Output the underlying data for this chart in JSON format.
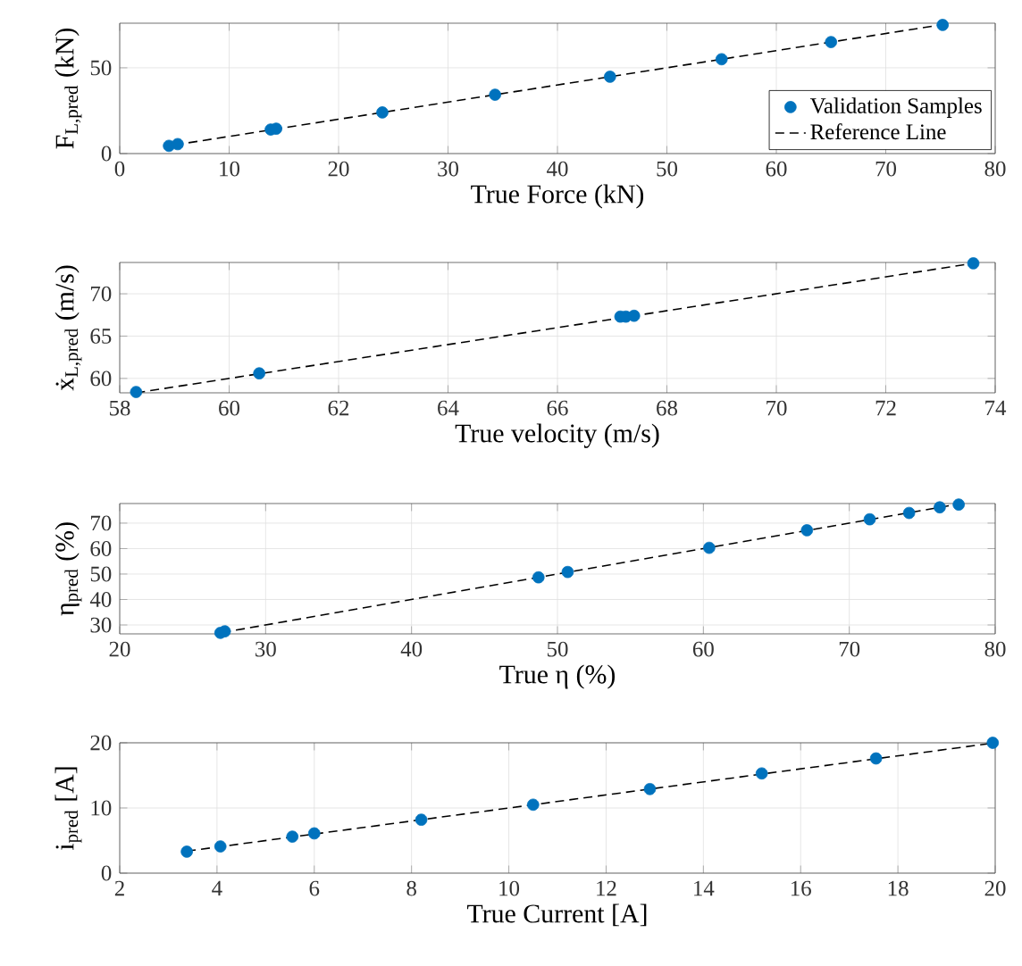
{
  "chart_data": [
    {
      "type": "scatter",
      "xlabel": "True Force (kN)",
      "ylabel": "F$_{L,pred}$ (kN)",
      "xlim": [
        0,
        80
      ],
      "ylim": [
        0,
        76
      ],
      "xticks": [
        0,
        10,
        20,
        30,
        40,
        50,
        60,
        70,
        80
      ],
      "yticks": [
        0,
        50
      ],
      "grid": true,
      "marker": "circle",
      "legend": "bottom right",
      "series": [
        {
          "name": "Validation Samples",
          "color": "#0072bd",
          "x": [
            4.5,
            5.3,
            13.8,
            14.3,
            24,
            34.3,
            44.8,
            55,
            65,
            75.2
          ],
          "values": [
            4.5,
            5.5,
            14,
            14.5,
            24,
            34.3,
            44.8,
            55,
            65,
            75
          ]
        },
        {
          "type": "line",
          "name": "Reference Line",
          "color": "#000000",
          "marker": "none",
          "line_style": "dashed",
          "x": [
            5,
            75.2
          ],
          "values": [
            5,
            75.2
          ]
        }
      ]
    },
    {
      "type": "scatter",
      "xlabel": "True velocity (m/s)",
      "ylabel": "ẋ$_{L,pred}$ (m/s)",
      "xlim": [
        58,
        74
      ],
      "ylim": [
        58.3,
        73.7
      ],
      "xticks": [
        58,
        60,
        62,
        64,
        66,
        68,
        70,
        72,
        74
      ],
      "yticks": [
        60,
        65,
        70
      ],
      "grid": true,
      "marker": "circle",
      "series": [
        {
          "color": "#0072bd",
          "x": [
            58.3,
            60.55,
            67.15,
            67.25,
            67.4,
            73.6
          ],
          "values": [
            58.4,
            60.6,
            67.3,
            67.3,
            67.4,
            73.6
          ]
        },
        {
          "type": "line",
          "color": "#000000",
          "marker": "none",
          "line_style": "dashed",
          "x": [
            58.3,
            73.6
          ],
          "values": [
            58.3,
            73.6
          ]
        }
      ]
    },
    {
      "type": "scatter",
      "xlabel": "True η (%)",
      "ylabel": "η$_{pred}$ (%)",
      "xlim": [
        20,
        80
      ],
      "ylim": [
        26.5,
        77.7
      ],
      "xticks": [
        20,
        30,
        40,
        50,
        60,
        70,
        80
      ],
      "yticks": [
        30,
        40,
        50,
        60,
        70
      ],
      "grid": true,
      "marker": "circle",
      "series": [
        {
          "color": "#0072bd",
          "x": [
            26.9,
            27.2,
            48.7,
            50.7,
            60.4,
            67.1,
            71.4,
            74.1,
            76.2,
            77.5
          ],
          "values": [
            26.9,
            27.5,
            48.7,
            50.8,
            60.3,
            67.2,
            71.5,
            74,
            76.2,
            77.3
          ]
        },
        {
          "type": "line",
          "color": "#000000",
          "marker": "none",
          "line_style": "dashed",
          "x": [
            27,
            77.5
          ],
          "values": [
            27,
            77.5
          ]
        }
      ]
    },
    {
      "type": "scatter",
      "xlabel": "True Current [A]",
      "ylabel": "i$_{pred}$ [A]",
      "xlim": [
        2,
        20
      ],
      "ylim": [
        0,
        20
      ],
      "xticks": [
        2,
        4,
        6,
        8,
        10,
        12,
        14,
        16,
        18,
        20
      ],
      "yticks": [
        0,
        10,
        20
      ],
      "grid": true,
      "marker": "circle",
      "series": [
        {
          "color": "#0072bd",
          "x": [
            3.38,
            4.07,
            5.55,
            6.0,
            8.2,
            10.5,
            12.9,
            15.2,
            17.55,
            19.95
          ],
          "values": [
            3.3,
            4.1,
            5.6,
            6.1,
            8.2,
            10.5,
            12.9,
            15.3,
            17.6,
            20
          ]
        },
        {
          "type": "line",
          "color": "#000000",
          "marker": "none",
          "line_style": "dashed",
          "x": [
            3.38,
            20
          ],
          "values": [
            3.38,
            20
          ]
        }
      ]
    }
  ]
}
